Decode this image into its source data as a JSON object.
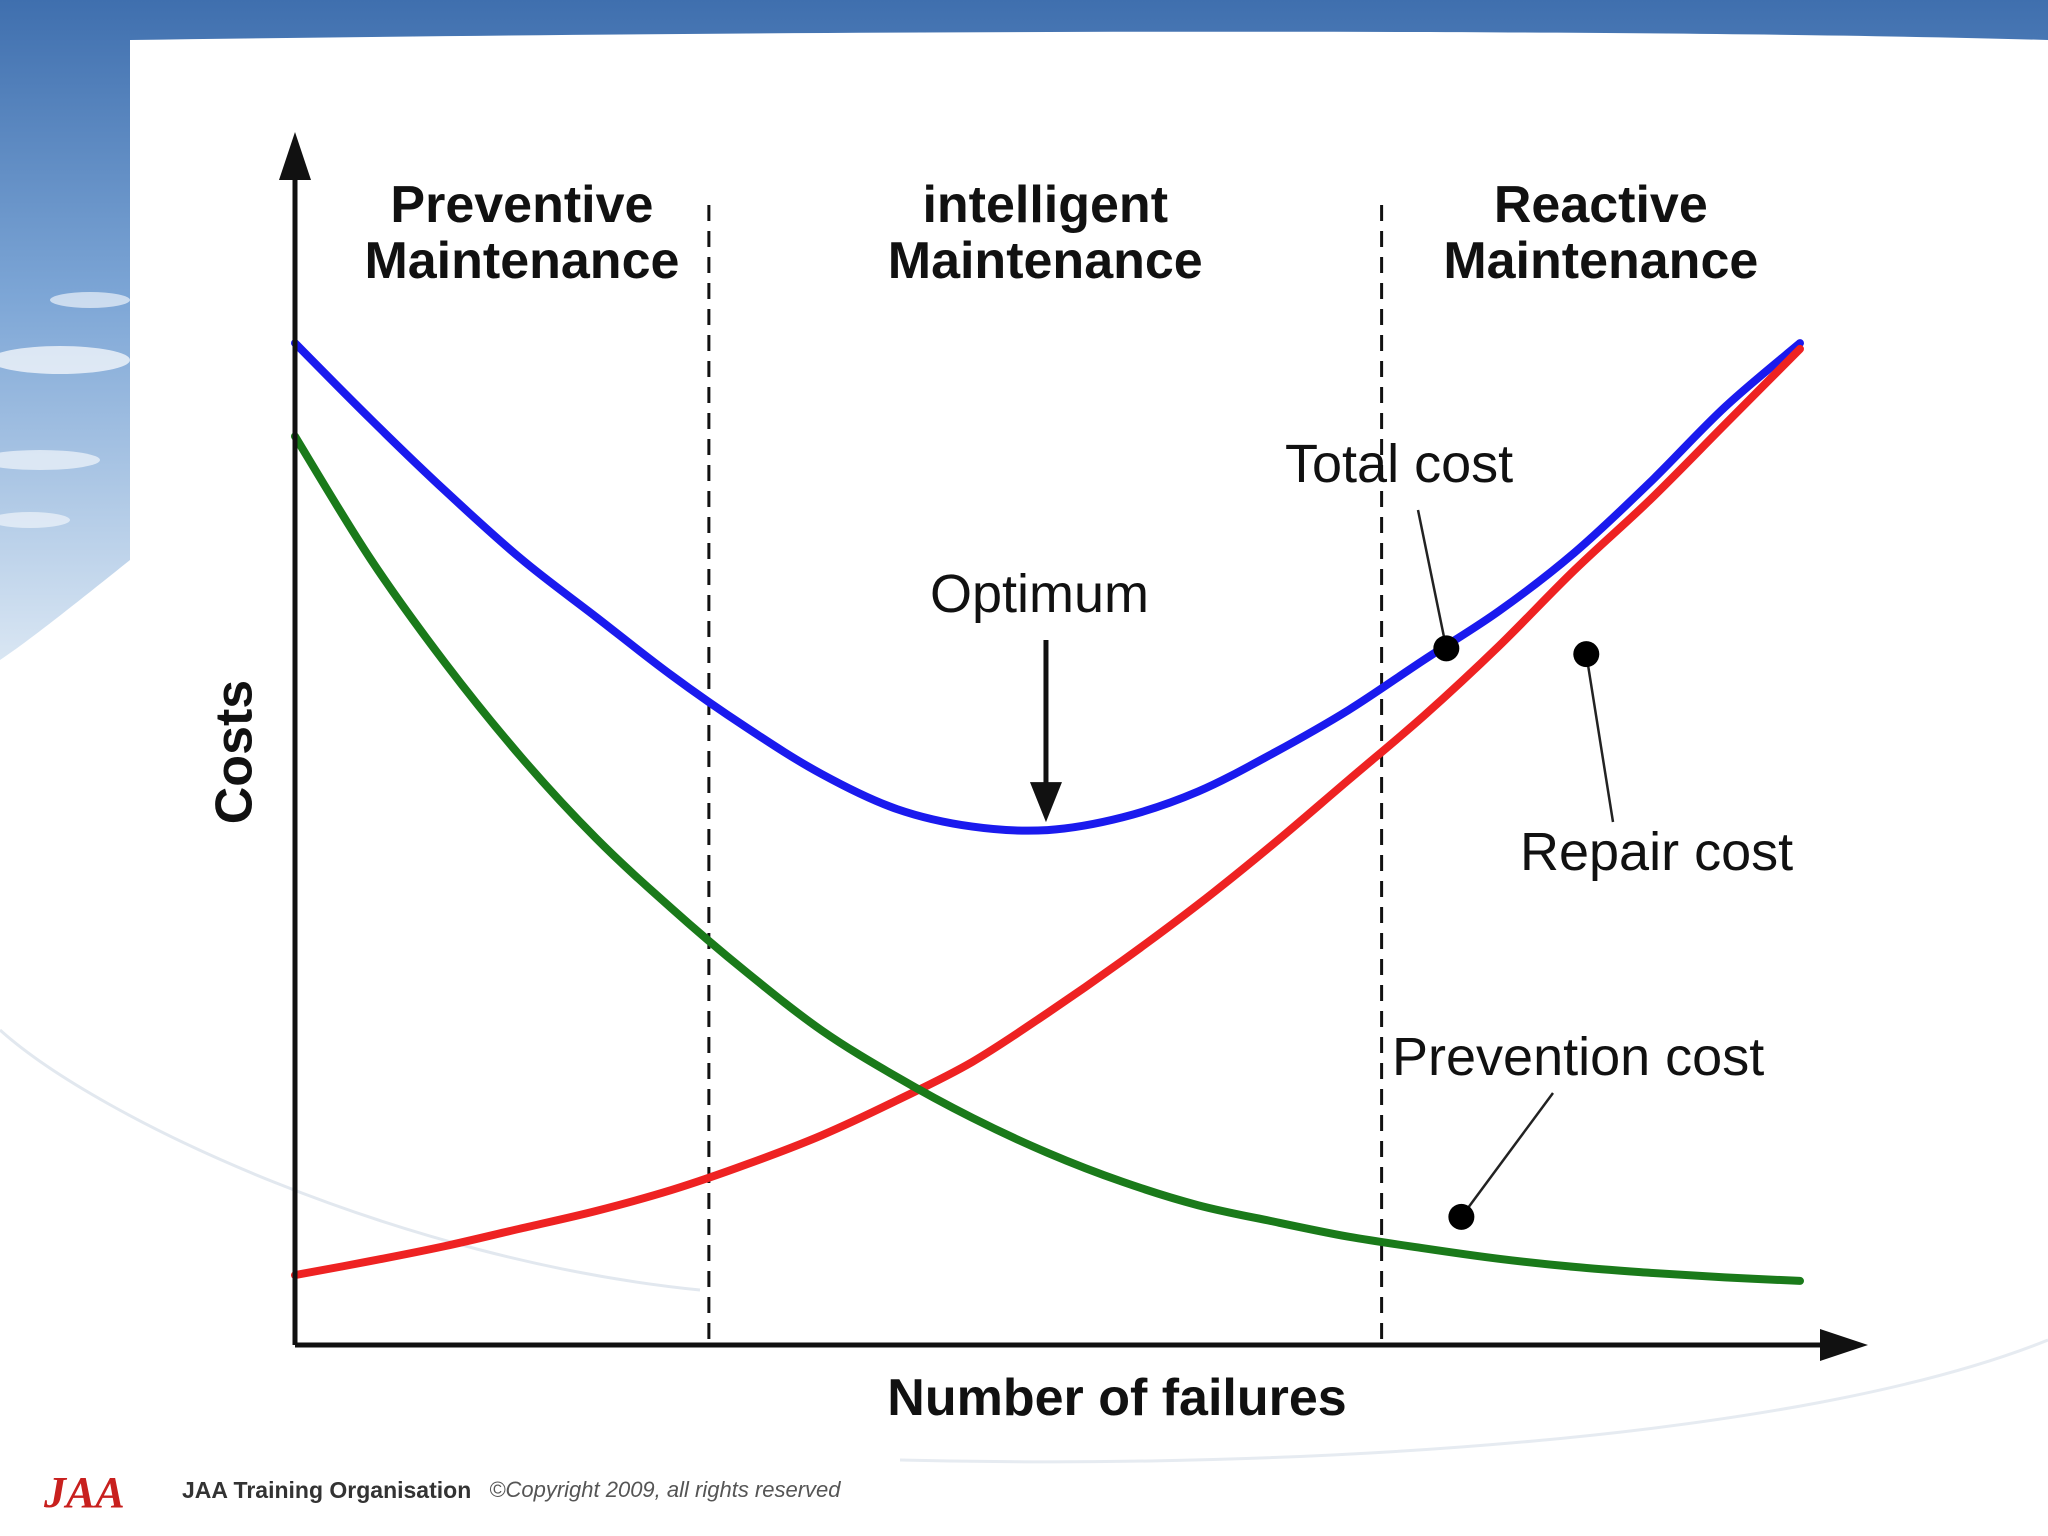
{
  "footer": {
    "logo_text": "JAA",
    "organisation": "JAA Training Organisation",
    "copyright": "©Copyright 2009, all rights reserved"
  },
  "colors": {
    "total": "#1a1aee",
    "repair": "#ee2222",
    "prevention": "#1a7a1a",
    "axis": "#111111",
    "logo": "#c8201e"
  },
  "chart_data": {
    "type": "line",
    "xlabel": "Number of failures",
    "ylabel": "Costs",
    "xlim": [
      0,
      100
    ],
    "ylim": [
      0,
      100
    ],
    "grid": false,
    "regions": [
      {
        "label_lines": [
          "Preventive",
          "Maintenance"
        ],
        "from": 0,
        "to": 27.5
      },
      {
        "label_lines": [
          "intelligent",
          "Maintenance"
        ],
        "from": 27.5,
        "to": 72.2
      },
      {
        "label_lines": [
          "Reactive",
          "Maintenance"
        ],
        "from": 72.2,
        "to": 100
      }
    ],
    "series": [
      {
        "name": "Total cost",
        "color": "#1a1aee",
        "x": [
          0,
          5,
          10,
          15,
          20,
          25,
          30,
          35,
          40,
          45,
          50,
          55,
          60,
          65,
          70,
          75,
          80,
          85,
          90,
          95,
          100
        ],
        "y": [
          86.0,
          79.5,
          73.3,
          67.5,
          62.5,
          57.5,
          53.0,
          49.0,
          46.0,
          44.5,
          44.2,
          45.3,
          47.5,
          50.8,
          54.5,
          58.8,
          63.0,
          68.0,
          74.0,
          80.5,
          86.0
        ]
      },
      {
        "name": "Repair cost",
        "color": "#ee2222",
        "x": [
          0,
          5,
          10,
          15,
          20,
          25,
          30,
          35,
          40,
          45,
          50,
          55,
          60,
          65,
          70,
          75,
          80,
          85,
          90,
          95,
          100
        ],
        "y": [
          6.0,
          7.2,
          8.5,
          10.0,
          11.5,
          13.3,
          15.5,
          18.0,
          21.0,
          24.3,
          28.5,
          33.0,
          37.8,
          43.0,
          48.5,
          54.0,
          60.0,
          66.5,
          72.5,
          79.0,
          85.5
        ]
      },
      {
        "name": "Prevention cost",
        "color": "#1a7a1a",
        "x": [
          0,
          5,
          10,
          15,
          20,
          25,
          30,
          35,
          40,
          45,
          50,
          55,
          60,
          65,
          70,
          75,
          80,
          85,
          90,
          95,
          100
        ],
        "y": [
          78.0,
          67.5,
          58.5,
          50.5,
          43.5,
          37.5,
          32.0,
          27.0,
          23.0,
          19.5,
          16.5,
          14.0,
          12.0,
          10.6,
          9.3,
          8.3,
          7.4,
          6.7,
          6.2,
          5.8,
          5.5
        ]
      }
    ],
    "annotations": [
      {
        "text": "Total cost",
        "series": "Total cost",
        "point": [
          76.5,
          59.8
        ]
      },
      {
        "text": "Repair cost",
        "series": "Repair cost",
        "point": [
          85.8,
          59.3
        ]
      },
      {
        "text": "Prevention cost",
        "series": "Prevention cost",
        "point": [
          77.5,
          11.0
        ]
      },
      {
        "text": "Optimum",
        "series": "Total cost",
        "arrow_to": [
          49.5,
          44.2
        ]
      }
    ]
  }
}
